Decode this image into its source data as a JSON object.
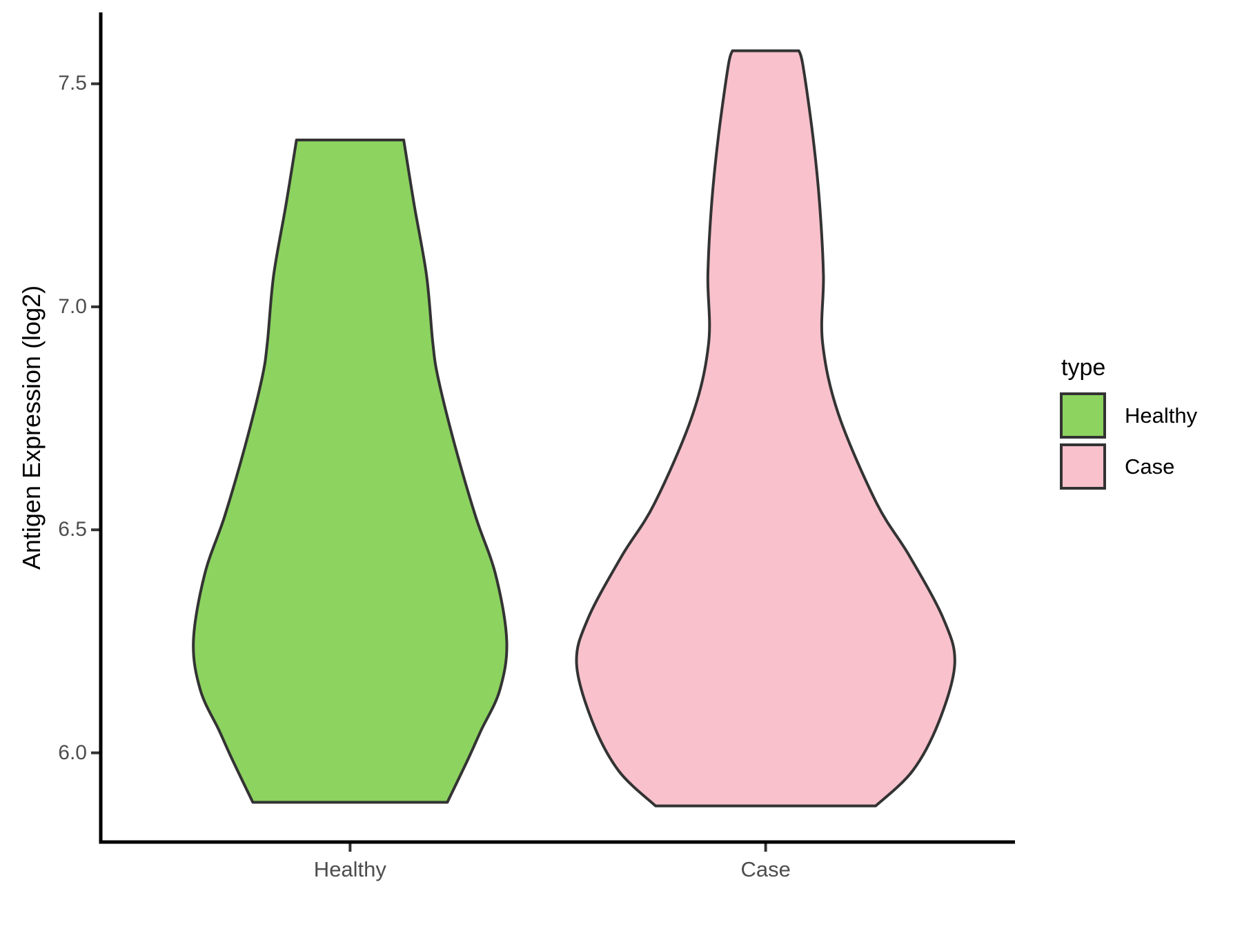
{
  "figure_bg": "#ffffff",
  "text_colors": {
    "axis_text": "#4d4d4d",
    "axis_title": "#000000",
    "legend_text": "#000000"
  },
  "axis_color": "#000000",
  "tick_color": "#333333",
  "chart_data": {
    "type": "violin",
    "title": "",
    "xlabel": "",
    "ylabel": "Antigen Expression (log2)",
    "categories": [
      "Healthy",
      "Case"
    ],
    "x_positions": [
      1,
      2
    ],
    "xlim": [
      0.4,
      2.6
    ],
    "ylim": [
      5.8,
      7.66
    ],
    "y_ticks": [
      6.0,
      6.5,
      7.0,
      7.5
    ],
    "y_tick_labels": [
      "6.0",
      "6.5",
      "7.0",
      "7.5"
    ],
    "grid": false,
    "legend_position": "right",
    "legend_title": "type",
    "series": [
      {
        "name": "Healthy",
        "x": 1,
        "fill": "#8CD360",
        "outline": "#333333",
        "min": 5.889,
        "max": 7.374,
        "profile": [
          [
            7.374,
            0.129
          ],
          [
            7.23,
            0.154
          ],
          [
            7.07,
            0.184
          ],
          [
            6.92,
            0.199
          ],
          [
            6.84,
            0.212
          ],
          [
            6.69,
            0.252
          ],
          [
            6.53,
            0.302
          ],
          [
            6.4,
            0.35
          ],
          [
            6.25,
            0.377
          ],
          [
            6.14,
            0.36
          ],
          [
            6.05,
            0.315
          ],
          [
            5.99,
            0.286
          ],
          [
            5.889,
            0.234
          ]
        ]
      },
      {
        "name": "Case",
        "x": 2,
        "fill": "#F8C1CC",
        "outline": "#333333",
        "min": 5.881,
        "max": 7.574,
        "profile": [
          [
            7.574,
            0.08
          ],
          [
            7.54,
            0.09
          ],
          [
            7.38,
            0.114
          ],
          [
            7.23,
            0.13
          ],
          [
            7.07,
            0.139
          ],
          [
            6.92,
            0.137
          ],
          [
            6.76,
            0.175
          ],
          [
            6.56,
            0.267
          ],
          [
            6.44,
            0.347
          ],
          [
            6.3,
            0.428
          ],
          [
            6.2,
            0.455
          ],
          [
            6.07,
            0.417
          ],
          [
            5.96,
            0.354
          ],
          [
            5.881,
            0.265
          ]
        ]
      }
    ]
  }
}
